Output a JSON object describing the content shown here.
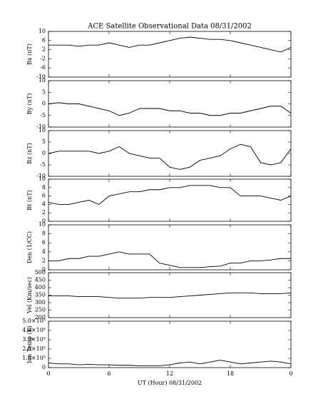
{
  "chart_data": [
    {
      "type": "line",
      "title": "ACE Satellite Observational Data   08/31/2002",
      "ylabel": "Bx (nT)",
      "x": [
        0,
        1,
        2,
        3,
        4,
        5,
        6,
        7,
        8,
        9,
        10,
        11,
        12,
        13,
        14,
        15,
        16,
        17,
        18,
        19,
        20,
        21,
        22,
        23,
        24
      ],
      "series": [
        {
          "name": "Bx",
          "color": "#000000",
          "values": [
            4,
            4,
            4,
            3.5,
            4,
            4,
            5,
            4,
            3,
            4,
            4,
            5,
            6,
            7,
            7.5,
            7,
            6.5,
            6.5,
            6,
            5,
            4,
            3,
            2,
            1,
            3
          ]
        }
      ],
      "xlim": [
        0,
        24
      ],
      "xticks": [
        0,
        6,
        12,
        18,
        24
      ],
      "ylim": [
        -10,
        10
      ],
      "yticks": [
        10,
        6,
        2,
        -2,
        -6,
        -10
      ]
    },
    {
      "type": "line",
      "ylabel": "By (nT)",
      "x": [
        0,
        1,
        2,
        3,
        4,
        5,
        6,
        7,
        8,
        9,
        10,
        11,
        12,
        13,
        14,
        15,
        16,
        17,
        18,
        19,
        20,
        21,
        22,
        23,
        24
      ],
      "series": [
        {
          "name": "By",
          "color": "#000000",
          "values": [
            0,
            0.5,
            0,
            0,
            -1,
            -2,
            -3,
            -5,
            -4,
            -2,
            -2,
            -2,
            -3,
            -3,
            -4,
            -4,
            -5,
            -5,
            -4,
            -4,
            -3,
            -2,
            -1,
            -1,
            -4
          ]
        }
      ],
      "xlim": [
        0,
        24
      ],
      "xticks": [
        0,
        6,
        12,
        18,
        24
      ],
      "ylim": [
        -10,
        10
      ],
      "yticks": [
        10,
        5,
        0,
        -5,
        -10
      ]
    },
    {
      "type": "line",
      "ylabel": "Bz (nT)",
      "x": [
        0,
        1,
        2,
        3,
        4,
        5,
        6,
        7,
        8,
        9,
        10,
        11,
        12,
        13,
        14,
        15,
        16,
        17,
        18,
        19,
        20,
        21,
        22,
        23,
        24
      ],
      "series": [
        {
          "name": "Bz",
          "color": "#000000",
          "values": [
            0,
            1,
            1,
            1,
            1,
            0,
            1,
            3,
            0,
            -1,
            -2,
            -2,
            -6,
            -7,
            -6,
            -3,
            -2,
            -1,
            2,
            4,
            3,
            -4,
            -5,
            -4,
            2
          ]
        }
      ],
      "xlim": [
        0,
        24
      ],
      "xticks": [
        0,
        6,
        12,
        18,
        24
      ],
      "ylim": [
        -10,
        10
      ],
      "yticks": [
        10,
        5,
        0,
        -5,
        -10
      ]
    },
    {
      "type": "line",
      "ylabel": "Bt (nT)",
      "x": [
        0,
        1,
        2,
        3,
        4,
        5,
        6,
        7,
        8,
        9,
        10,
        11,
        12,
        13,
        14,
        15,
        16,
        17,
        18,
        19,
        20,
        21,
        22,
        23,
        24
      ],
      "series": [
        {
          "name": "Bt",
          "color": "#000000",
          "values": [
            4.5,
            4,
            4,
            4.5,
            5,
            4,
            6,
            6.5,
            7,
            7,
            7.5,
            7.5,
            8,
            8,
            8.5,
            8.5,
            8.5,
            8,
            8,
            6,
            6,
            6,
            5.5,
            5,
            6
          ]
        }
      ],
      "xlim": [
        0,
        24
      ],
      "xticks": [
        0,
        6,
        12,
        18,
        24
      ],
      "ylim": [
        0,
        10
      ],
      "yticks": [
        10,
        8,
        6,
        4,
        2,
        0
      ]
    },
    {
      "type": "line",
      "ylabel": "Den (1/CC)",
      "x": [
        0,
        1,
        2,
        3,
        4,
        5,
        6,
        7,
        8,
        9,
        10,
        11,
        12,
        13,
        14,
        15,
        16,
        17,
        18,
        19,
        20,
        21,
        22,
        23,
        24
      ],
      "series": [
        {
          "name": "Den",
          "color": "#000000",
          "values": [
            2,
            2,
            2.5,
            2.5,
            3,
            3,
            3.5,
            4,
            3.5,
            3.5,
            3.5,
            1.5,
            1,
            0.5,
            0.5,
            0.5,
            0.7,
            0.8,
            1.5,
            1.5,
            2,
            2,
            2.2,
            2.5,
            2.5
          ]
        }
      ],
      "xlim": [
        0,
        24
      ],
      "xticks": [
        0,
        6,
        12,
        18,
        24
      ],
      "ylim": [
        0,
        10
      ],
      "yticks": [
        10,
        8,
        6,
        4,
        2,
        0
      ]
    },
    {
      "type": "line",
      "ylabel": "Vel (Km/sec)",
      "x": [
        0,
        1,
        2,
        3,
        4,
        5,
        6,
        7,
        8,
        9,
        10,
        11,
        12,
        13,
        14,
        15,
        16,
        17,
        18,
        19,
        20,
        21,
        22,
        23,
        24
      ],
      "series": [
        {
          "name": "Vel",
          "color": "#000000",
          "values": [
            345,
            345,
            345,
            340,
            340,
            340,
            335,
            330,
            330,
            330,
            335,
            335,
            335,
            340,
            345,
            350,
            355,
            360,
            365,
            365,
            365,
            360,
            360,
            360,
            365
          ]
        }
      ],
      "xlim": [
        0,
        24
      ],
      "xticks": [
        0,
        6,
        12,
        18,
        24
      ],
      "ylim": [
        200,
        500
      ],
      "yticks": [
        500,
        450,
        400,
        350,
        300,
        250,
        200
      ]
    },
    {
      "type": "line",
      "ylabel": "Ion Temp (K)",
      "xlabel": "UT (Hour)   08/31/2002",
      "x": [
        0,
        1,
        2,
        3,
        4,
        5,
        6,
        7,
        8,
        9,
        10,
        11,
        12,
        13,
        14,
        15,
        16,
        17,
        18,
        19,
        20,
        21,
        22,
        23,
        24
      ],
      "series": [
        {
          "name": "Ion Temp",
          "color": "#000000",
          "values": [
            50000,
            40000,
            40000,
            30000,
            35000,
            30000,
            30000,
            25000,
            25000,
            20000,
            20000,
            20000,
            30000,
            50000,
            60000,
            40000,
            60000,
            80000,
            60000,
            40000,
            50000,
            60000,
            70000,
            60000,
            40000
          ]
        }
      ],
      "xlim": [
        0,
        24
      ],
      "xticks": [
        0,
        6,
        12,
        18,
        {
          "value": 24,
          "label": "0"
        }
      ],
      "ylim": [
        0,
        500000
      ],
      "yticks": [
        {
          "value": 500000,
          "label": "5.0×10⁵"
        },
        {
          "value": 400000,
          "label": "4.0×10⁵"
        },
        {
          "value": 300000,
          "label": "3.0×10⁵"
        },
        {
          "value": 200000,
          "label": "2.0×10⁵"
        },
        {
          "value": 100000,
          "label": "1.0×10⁵"
        },
        0
      ]
    }
  ]
}
